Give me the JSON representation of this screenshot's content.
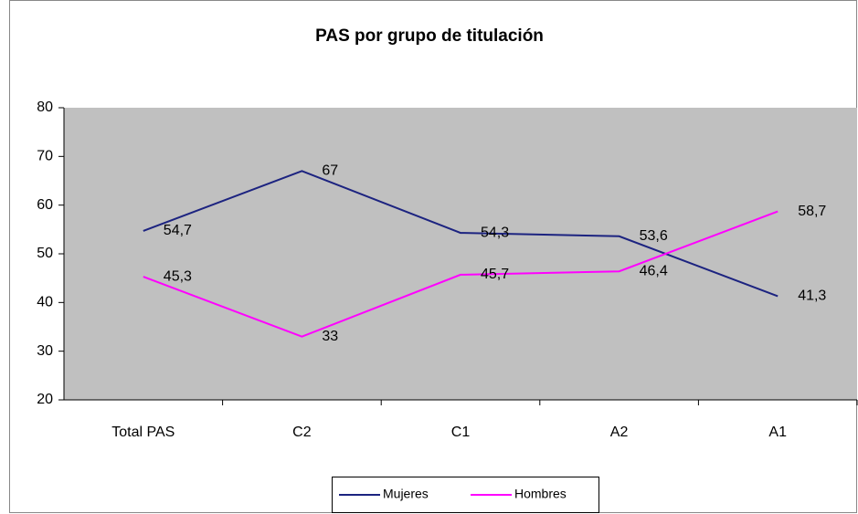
{
  "chart_data": {
    "type": "line",
    "title": "PAS por grupo de titulación",
    "categories": [
      "Total PAS",
      "C2",
      "C1",
      "A2",
      "A1"
    ],
    "series": [
      {
        "name": "Mujeres",
        "color": "#1c2380",
        "values": [
          54.7,
          67,
          54.3,
          53.6,
          41.3
        ],
        "value_labels": [
          "54,7",
          "67",
          "54,3",
          "53,6",
          "41,3"
        ]
      },
      {
        "name": "Hombres",
        "color": "#ff00ff",
        "values": [
          45.3,
          33,
          45.7,
          46.4,
          58.7
        ],
        "value_labels": [
          "45,3",
          "33",
          "45,7",
          "46,4",
          "58,7"
        ]
      }
    ],
    "ylim": [
      20,
      80
    ],
    "yticks": [
      20,
      30,
      40,
      50,
      60,
      70,
      80
    ],
    "legend": "bottom",
    "plot_background": "#c0c0c0"
  }
}
